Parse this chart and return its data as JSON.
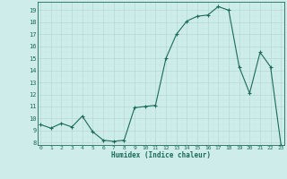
{
  "x": [
    0,
    1,
    2,
    3,
    4,
    5,
    6,
    7,
    8,
    9,
    10,
    11,
    12,
    13,
    14,
    15,
    16,
    17,
    18,
    19,
    20,
    21,
    22,
    23
  ],
  "y": [
    9.5,
    9.2,
    9.6,
    9.3,
    10.2,
    8.9,
    8.2,
    8.1,
    8.2,
    10.9,
    11.0,
    11.1,
    15.0,
    17.0,
    18.1,
    18.5,
    18.6,
    19.3,
    19.0,
    14.3,
    12.1,
    15.5,
    14.3,
    7.8
  ],
  "xlim": [
    0,
    23
  ],
  "ylim": [
    8,
    19.5
  ],
  "yticks": [
    8,
    9,
    10,
    11,
    12,
    13,
    14,
    15,
    16,
    17,
    18,
    19
  ],
  "xticks": [
    0,
    1,
    2,
    3,
    4,
    5,
    6,
    7,
    8,
    9,
    10,
    11,
    12,
    13,
    14,
    15,
    16,
    17,
    18,
    19,
    20,
    21,
    22,
    23
  ],
  "xlabel": "Humidex (Indice chaleur)",
  "line_color": "#1a6b5a",
  "marker_color": "#1a6b5a",
  "bg_color": "#cdecea",
  "grid_major_color": "#b8d8d5",
  "grid_minor_color": "#c8e8e5",
  "axis_color": "#1a6b5a",
  "font_family": "monospace"
}
